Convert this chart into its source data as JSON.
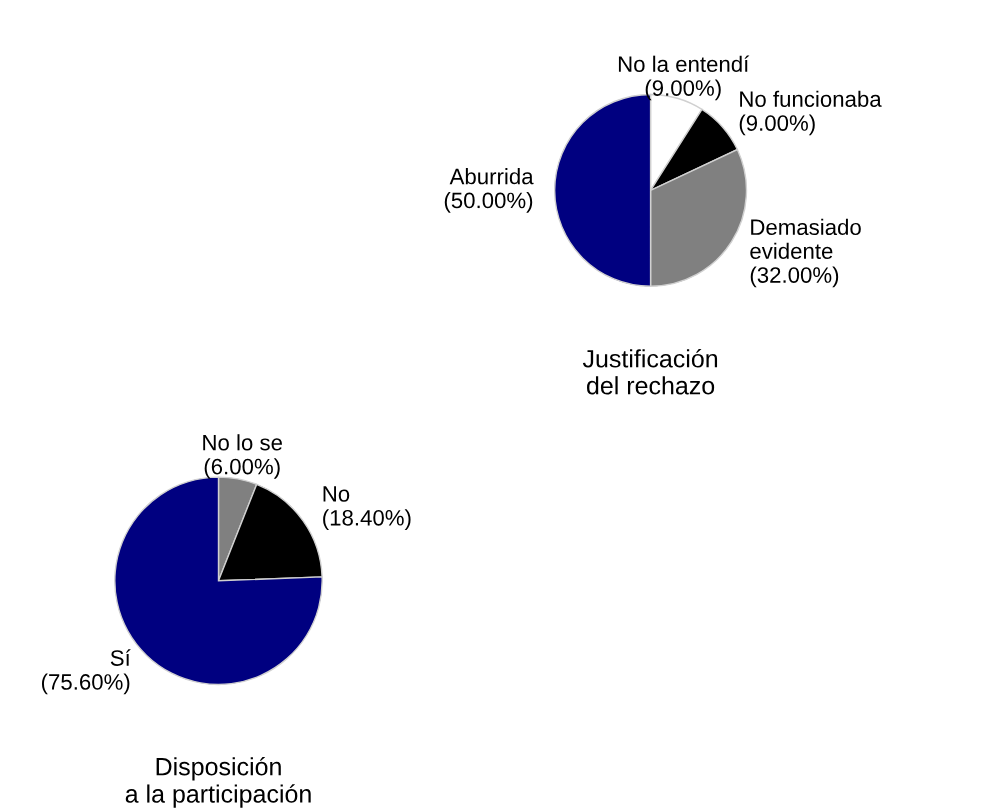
{
  "chart_data": [
    {
      "type": "pie",
      "title": "Justificación\ndel rechazo",
      "categories": [
        "No la entendí",
        "No funcionaba",
        "Demasiado\nevidente",
        "Aburrida"
      ],
      "values": [
        9,
        9,
        32,
        50
      ],
      "value_labels": [
        "(9.00%)",
        "(9.00%)",
        "(32.00%)",
        "(50.00%)"
      ],
      "colors": [
        "#ffffff",
        "#000000",
        "#808080",
        "#000080"
      ]
    },
    {
      "type": "pie",
      "title": "Disposición\na la participación",
      "categories": [
        "No lo se",
        "No",
        "Sí"
      ],
      "values": [
        6,
        18.4,
        75.6
      ],
      "value_labels": [
        "(6.00%)",
        "(18.40%)",
        "(75.60%)"
      ],
      "colors": [
        "#808080",
        "#000000",
        "#000080"
      ]
    }
  ]
}
